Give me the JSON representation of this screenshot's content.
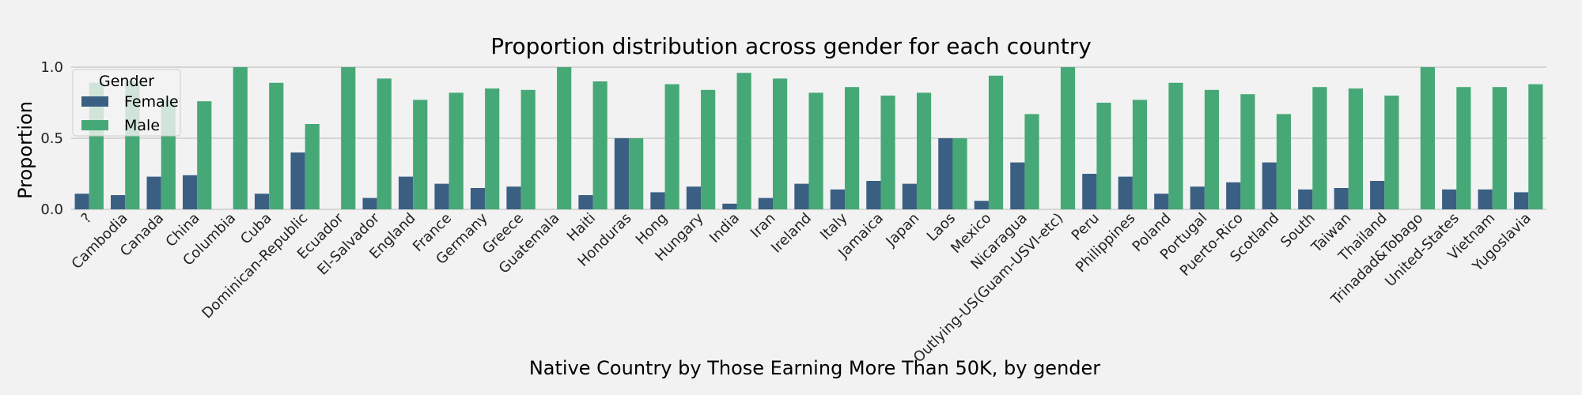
{
  "chart_data": {
    "type": "bar",
    "title": "Proportion distribution across gender for each country",
    "xlabel": "Native Country by Those Earning More Than 50K, by gender",
    "ylabel": "Proportion",
    "ylim": [
      0,
      1
    ],
    "yticks": [
      "0.0",
      "0.5",
      "1.0"
    ],
    "grid": true,
    "legend": {
      "title": "Gender",
      "position": "top-left"
    },
    "categories": [
      "?",
      "Cambodia",
      "Canada",
      "China",
      "Columbia",
      "Cuba",
      "Dominican-Republic",
      "Ecuador",
      "El-Salvador",
      "England",
      "France",
      "Germany",
      "Greece",
      "Guatemala",
      "Haiti",
      "Honduras",
      "Hong",
      "Hungary",
      "India",
      "Iran",
      "Ireland",
      "Italy",
      "Jamaica",
      "Japan",
      "Laos",
      "Mexico",
      "Nicaragua",
      "Outlying-US(Guam-USVI-etc)",
      "Peru",
      "Philippines",
      "Poland",
      "Portugal",
      "Puerto-Rico",
      "Scotland",
      "South",
      "Taiwan",
      "Thailand",
      "Trinadad&Tobago",
      "United-States",
      "Vietnam",
      "Yugoslavia"
    ],
    "series": [
      {
        "name": "Female",
        "color": "#3b5f82",
        "values": [
          0.11,
          0.1,
          0.23,
          0.24,
          0.0,
          0.11,
          0.4,
          0.0,
          0.08,
          0.23,
          0.18,
          0.15,
          0.16,
          0.0,
          0.1,
          0.5,
          0.12,
          0.16,
          0.04,
          0.08,
          0.18,
          0.14,
          0.2,
          0.18,
          0.5,
          0.06,
          0.33,
          0.0,
          0.25,
          0.23,
          0.11,
          0.16,
          0.19,
          0.33,
          0.14,
          0.15,
          0.2,
          0.0,
          0.14,
          0.14,
          0.12
        ]
      },
      {
        "name": "Male",
        "color": "#47a877",
        "values": [
          0.89,
          0.9,
          0.77,
          0.76,
          1.0,
          0.89,
          0.6,
          1.0,
          0.92,
          0.77,
          0.82,
          0.85,
          0.84,
          1.0,
          0.9,
          0.5,
          0.88,
          0.84,
          0.96,
          0.92,
          0.82,
          0.86,
          0.8,
          0.82,
          0.5,
          0.94,
          0.67,
          1.0,
          0.75,
          0.77,
          0.89,
          0.84,
          0.81,
          0.67,
          0.86,
          0.85,
          0.8,
          1.0,
          0.86,
          0.86,
          0.88
        ]
      }
    ]
  }
}
